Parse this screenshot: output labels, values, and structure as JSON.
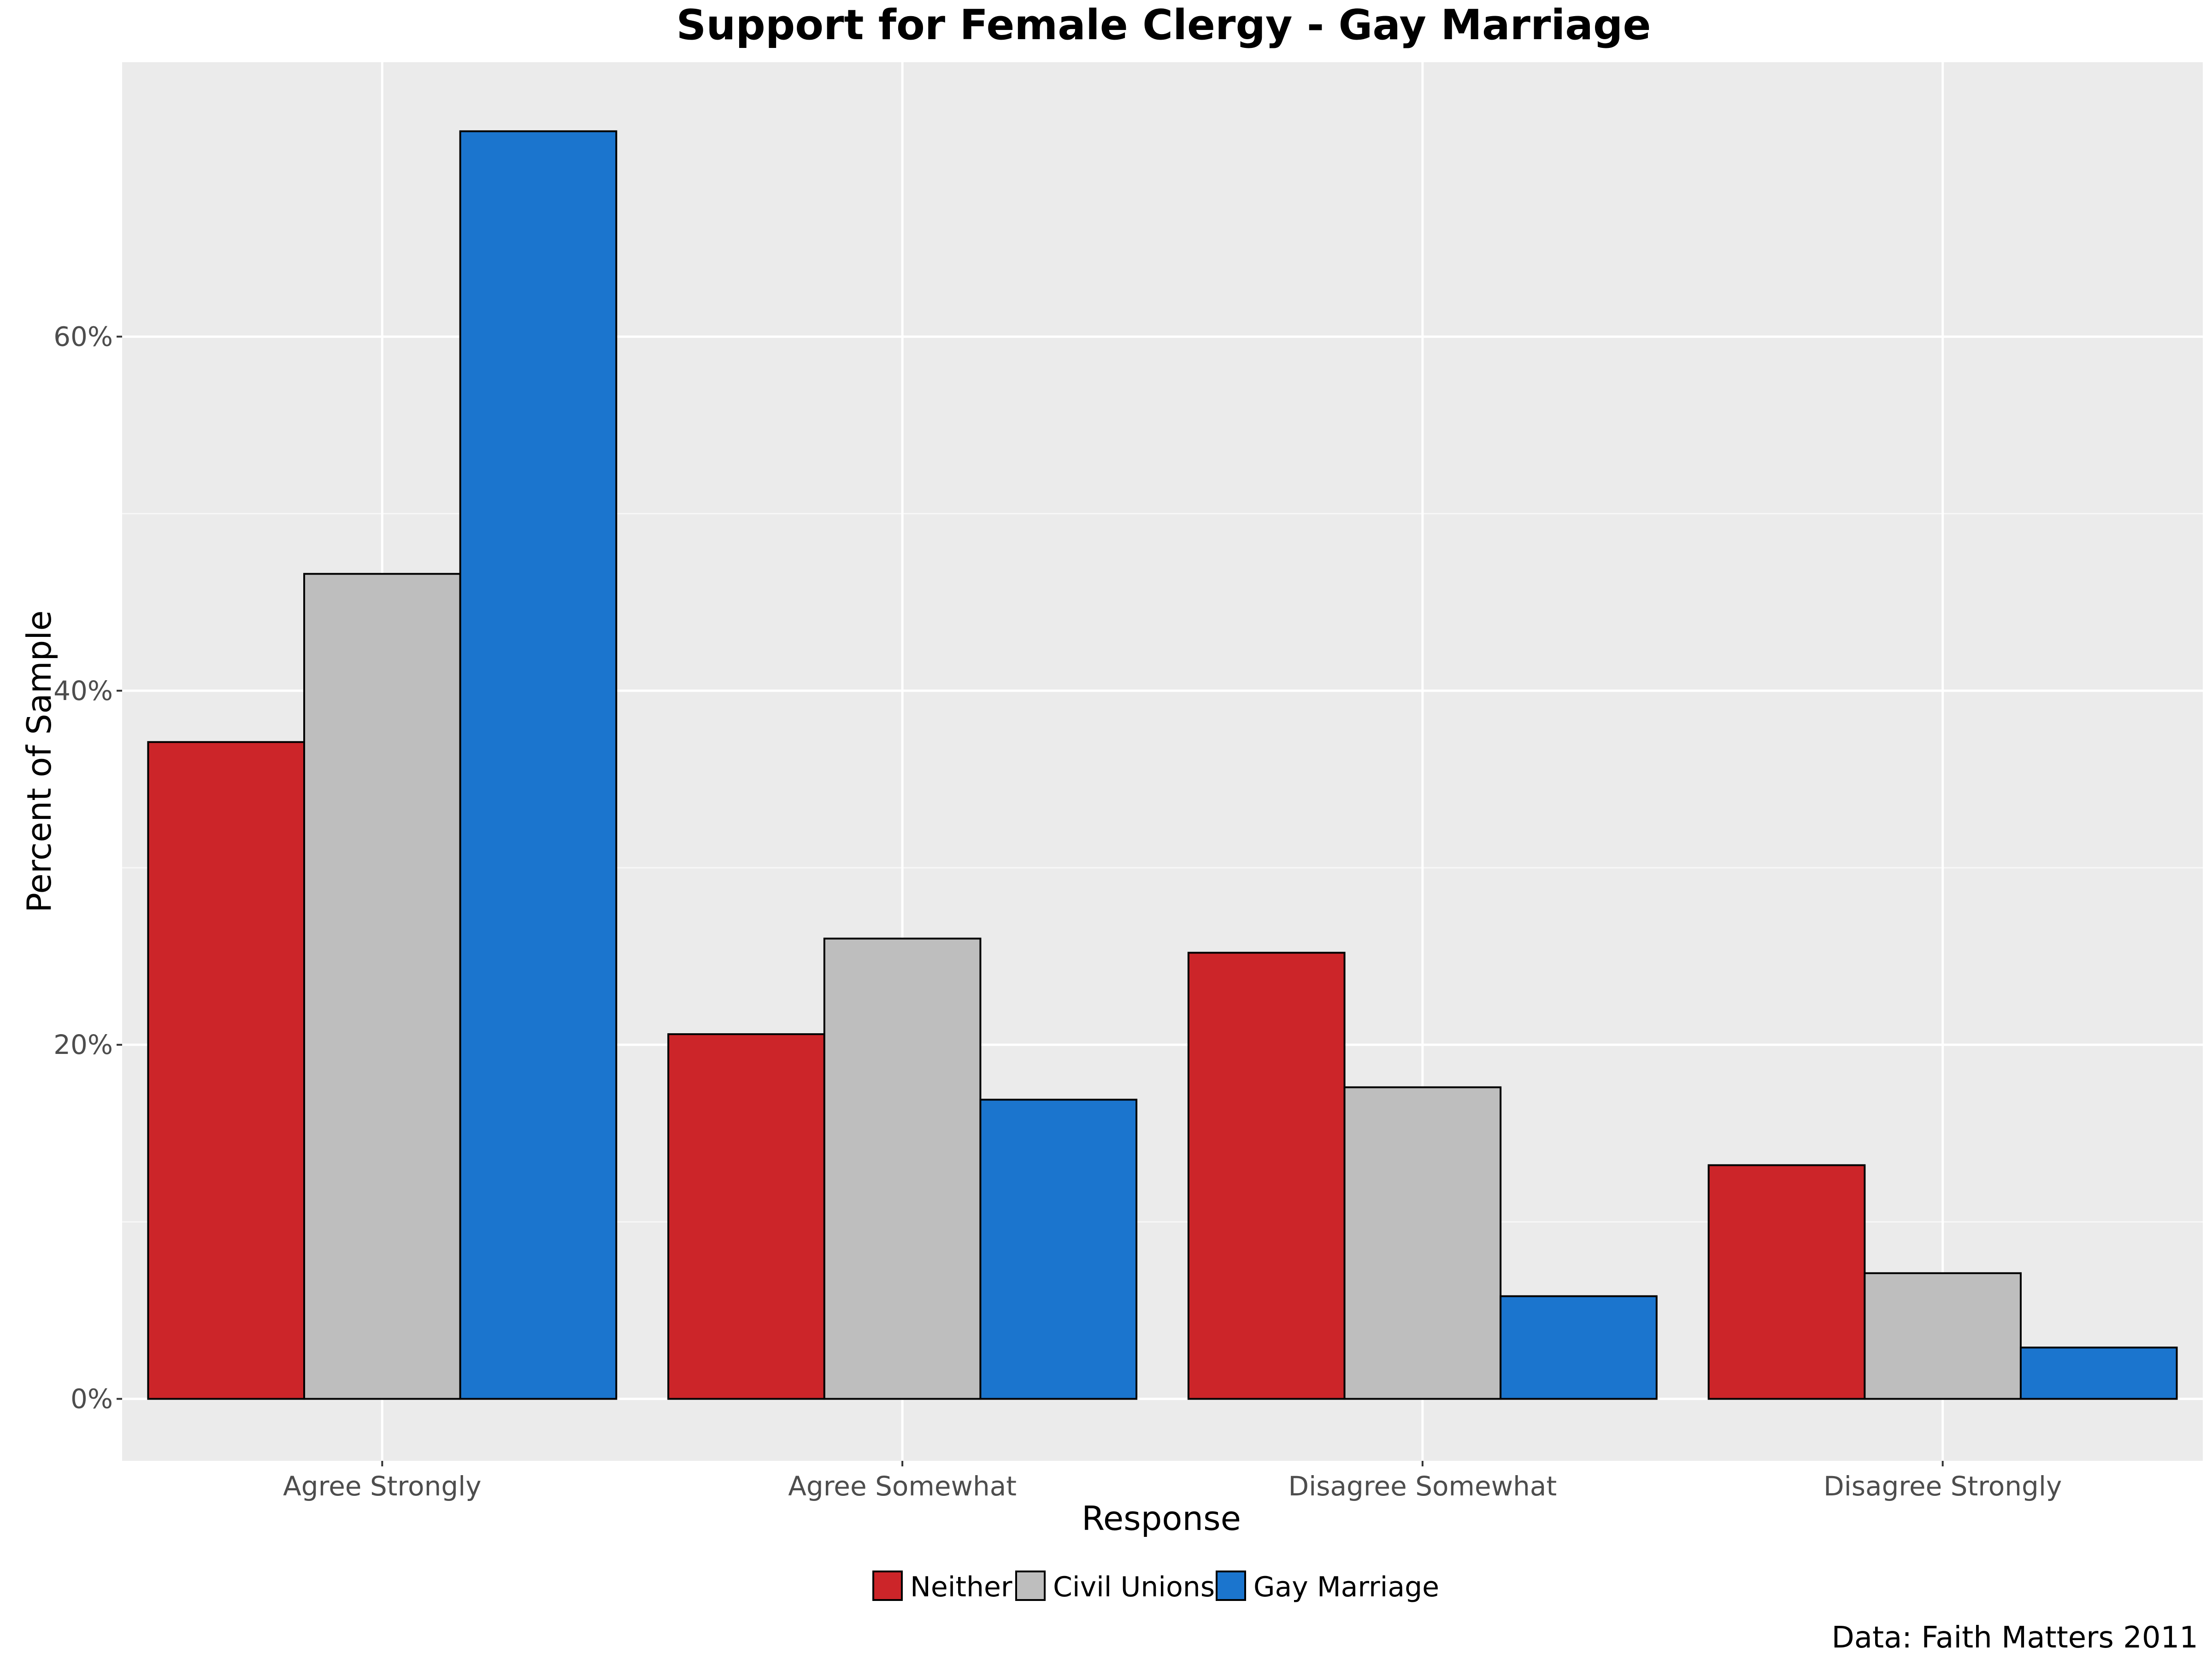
{
  "chart_data": {
    "type": "bar",
    "title": "Support for Female Clergy - Gay Marriage",
    "xlabel": "Response",
    "ylabel": "Percent of Sample",
    "categories": [
      "Agree Strongly",
      "Agree Somewhat",
      "Disagree Somewhat",
      "Disagree Strongly"
    ],
    "series": [
      {
        "name": "Neither",
        "color": "#CC2529",
        "values": [
          37.1,
          20.6,
          25.2,
          13.2
        ]
      },
      {
        "name": "Civil Unions",
        "color": "#BEBEBE",
        "values": [
          46.6,
          26.0,
          17.6,
          7.1
        ]
      },
      {
        "name": "Gay Marriage",
        "color": "#1B75CE",
        "values": [
          71.6,
          16.9,
          5.8,
          2.9
        ]
      }
    ],
    "ylim": [
      -3.5,
      75.5
    ],
    "yticks": [
      0,
      20,
      40,
      60
    ],
    "ytick_labels": [
      "0%",
      "20%",
      "40%",
      "60%"
    ],
    "grid": true,
    "legend_position": "bottom",
    "caption": "Data: Faith Matters 2011"
  }
}
